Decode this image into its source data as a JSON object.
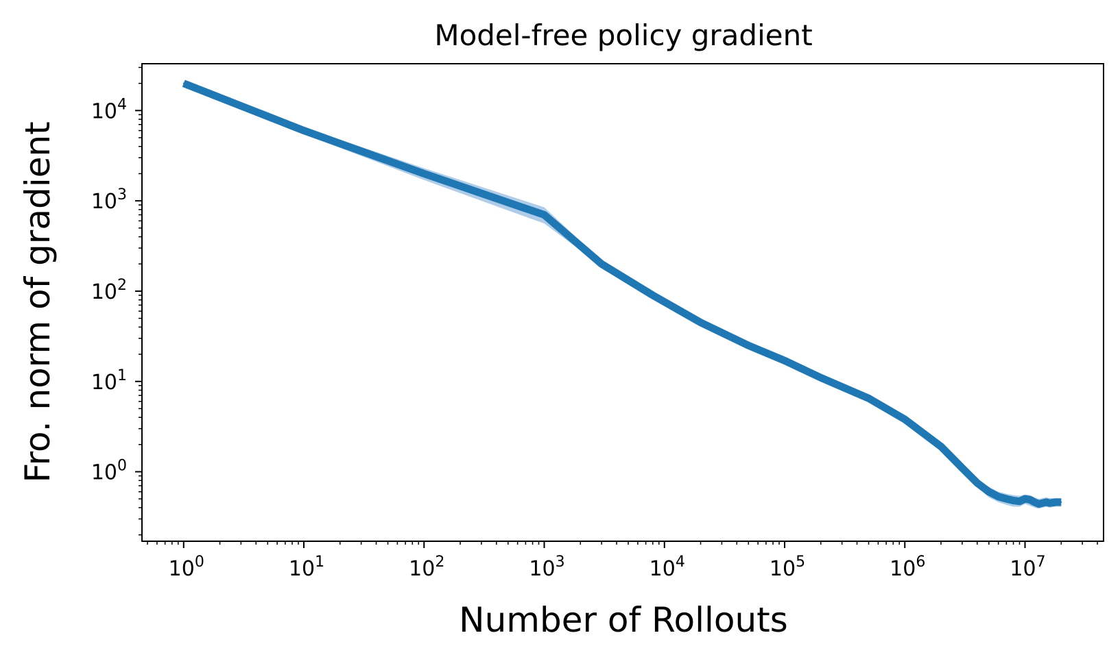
{
  "chart_data": {
    "type": "line",
    "title": "Model-free policy gradient",
    "xlabel": "Number of Rollouts",
    "ylabel": "Fro. norm of gradient",
    "xscale": "log",
    "yscale": "log",
    "xlim": [
      0.45,
      45000000
    ],
    "ylim": [
      0.17,
      33000
    ],
    "x_ticks": [
      {
        "value": 1,
        "base": "10",
        "exp": "0"
      },
      {
        "value": 10,
        "base": "10",
        "exp": "1"
      },
      {
        "value": 100,
        "base": "10",
        "exp": "2"
      },
      {
        "value": 1000,
        "base": "10",
        "exp": "3"
      },
      {
        "value": 10000,
        "base": "10",
        "exp": "4"
      },
      {
        "value": 100000,
        "base": "10",
        "exp": "5"
      },
      {
        "value": 1000000,
        "base": "10",
        "exp": "6"
      },
      {
        "value": 10000000,
        "base": "10",
        "exp": "7"
      }
    ],
    "y_ticks": [
      {
        "value": 1,
        "base": "10",
        "exp": "0"
      },
      {
        "value": 10,
        "base": "10",
        "exp": "1"
      },
      {
        "value": 100,
        "base": "10",
        "exp": "2"
      },
      {
        "value": 1000,
        "base": "10",
        "exp": "3"
      },
      {
        "value": 10000,
        "base": "10",
        "exp": "4"
      }
    ],
    "grid": false,
    "legend": "none",
    "series": [
      {
        "color": "#1f77b4",
        "band_color": "#a6c8e6",
        "x": [
          1,
          10,
          100,
          1000,
          3000,
          8000,
          20000,
          50000,
          100000,
          200000,
          500000,
          1000000,
          2000000,
          3000000,
          4000000,
          5000000,
          6000000,
          7000000,
          8000000,
          9000000,
          10000000,
          11000000,
          12000000,
          13000000,
          14000000,
          15000000,
          16000000,
          18000000,
          20000000
        ],
        "y": [
          20000,
          6000,
          2000,
          700,
          200,
          90,
          45,
          25,
          17,
          11,
          6.5,
          3.8,
          1.9,
          1.1,
          0.75,
          0.6,
          0.53,
          0.5,
          0.48,
          0.47,
          0.5,
          0.49,
          0.46,
          0.44,
          0.45,
          0.46,
          0.45,
          0.46,
          0.46
        ],
        "lower": [
          19000,
          5500,
          1700,
          560,
          190,
          87,
          44,
          24.5,
          16.7,
          10.8,
          6.3,
          3.6,
          1.8,
          1.0,
          0.68,
          0.52,
          0.46,
          0.43,
          0.41,
          0.41,
          0.44,
          0.42,
          0.4,
          0.39,
          0.4,
          0.41,
          0.4,
          0.41,
          0.41
        ],
        "upper": [
          21000,
          6500,
          2300,
          850,
          215,
          93,
          46,
          25.5,
          17.3,
          11.2,
          6.7,
          4.0,
          2.0,
          1.2,
          0.82,
          0.68,
          0.6,
          0.57,
          0.55,
          0.54,
          0.56,
          0.55,
          0.52,
          0.5,
          0.51,
          0.52,
          0.51,
          0.51,
          0.51
        ]
      }
    ]
  }
}
